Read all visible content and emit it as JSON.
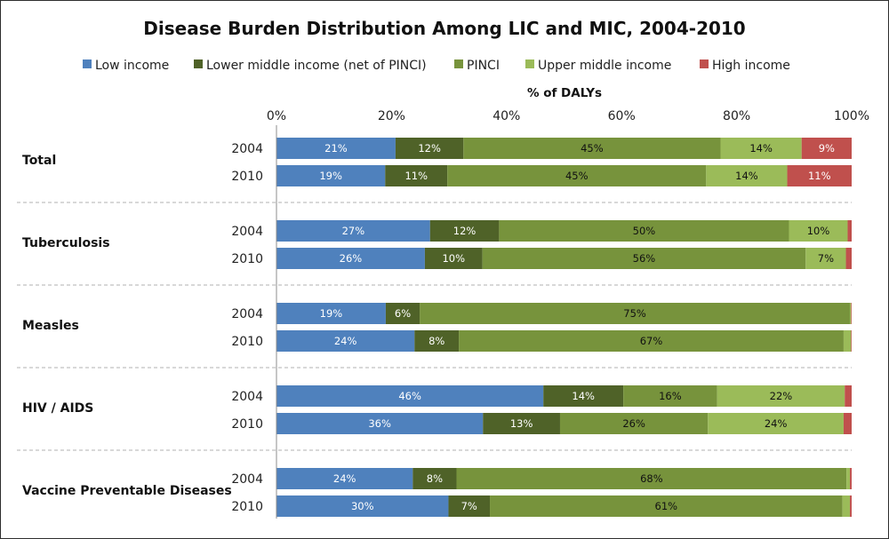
{
  "chart_data": {
    "type": "bar",
    "orientation": "horizontal",
    "stacked": "percent",
    "title": "Disease Burden Distribution Among LIC and MIC, 2004-2010",
    "xlabel": "% of DALYs",
    "ylabel": "",
    "xlim": [
      0,
      100
    ],
    "x_ticks": [
      "0%",
      "20%",
      "40%",
      "60%",
      "80%",
      "100%"
    ],
    "legend_position": "top",
    "series": [
      {
        "name": "Low income",
        "color": "#4f81bd",
        "label_color": "#ffffff"
      },
      {
        "name": "Lower middle income (net of PINCI)",
        "color": "#4f6228",
        "label_color": "#ffffff"
      },
      {
        "name": "PINCI",
        "color": "#77933c",
        "label_color": "#111111"
      },
      {
        "name": "Upper middle income",
        "color": "#9bbb59",
        "label_color": "#111111"
      },
      {
        "name": "High income",
        "color": "#c0504d",
        "label_color": "#ffffff"
      }
    ],
    "groups": [
      {
        "name": "Total",
        "bars": [
          {
            "year": "2004",
            "values": [
              20.7,
              11.8,
              44.7,
              14.1,
              8.7
            ],
            "labels": [
              "21%",
              "12%",
              "45%",
              "14%",
              "9%"
            ]
          },
          {
            "year": "2010",
            "values": [
              18.9,
              10.8,
              45.0,
              14.1,
              11.2
            ],
            "labels": [
              "19%",
              "11%",
              "45%",
              "14%",
              "11%"
            ]
          }
        ]
      },
      {
        "name": "Tuberculosis",
        "bars": [
          {
            "year": "2004",
            "values": [
              26.7,
              12.0,
              50.4,
              10.2,
              0.7
            ],
            "labels": [
              "27%",
              "12%",
              "50%",
              "10%",
              ""
            ]
          },
          {
            "year": "2010",
            "values": [
              25.8,
              10.0,
              56.2,
              7.0,
              1.0
            ],
            "labels": [
              "26%",
              "10%",
              "56%",
              "7%",
              ""
            ]
          }
        ]
      },
      {
        "name": "Measles",
        "bars": [
          {
            "year": "2004",
            "values": [
              19.0,
              5.9,
              74.8,
              0.2,
              0.1
            ],
            "labels": [
              "19%",
              "6%",
              "75%",
              "",
              ""
            ]
          },
          {
            "year": "2010",
            "values": [
              24.0,
              7.7,
              66.9,
              1.3,
              0.1
            ],
            "labels": [
              "24%",
              "8%",
              "67%",
              "",
              ""
            ]
          }
        ]
      },
      {
        "name": "HIV / AIDS",
        "bars": [
          {
            "year": "2004",
            "values": [
              46.4,
              13.9,
              16.3,
              22.2,
              1.2
            ],
            "labels": [
              "46%",
              "14%",
              "16%",
              "22%",
              ""
            ]
          },
          {
            "year": "2010",
            "values": [
              35.9,
              13.4,
              25.7,
              23.6,
              1.4
            ],
            "labels": [
              "36%",
              "13%",
              "26%",
              "24%",
              ""
            ]
          }
        ]
      },
      {
        "name": "Vaccine Preventable Diseases",
        "bars": [
          {
            "year": "2004",
            "values": [
              23.7,
              7.6,
              67.8,
              0.6,
              0.3
            ],
            "labels": [
              "24%",
              "8%",
              "68%",
              "",
              ""
            ]
          },
          {
            "year": "2010",
            "values": [
              29.9,
              7.2,
              61.3,
              1.3,
              0.3
            ],
            "labels": [
              "30%",
              "7%",
              "61%",
              "",
              ""
            ]
          }
        ]
      }
    ]
  }
}
